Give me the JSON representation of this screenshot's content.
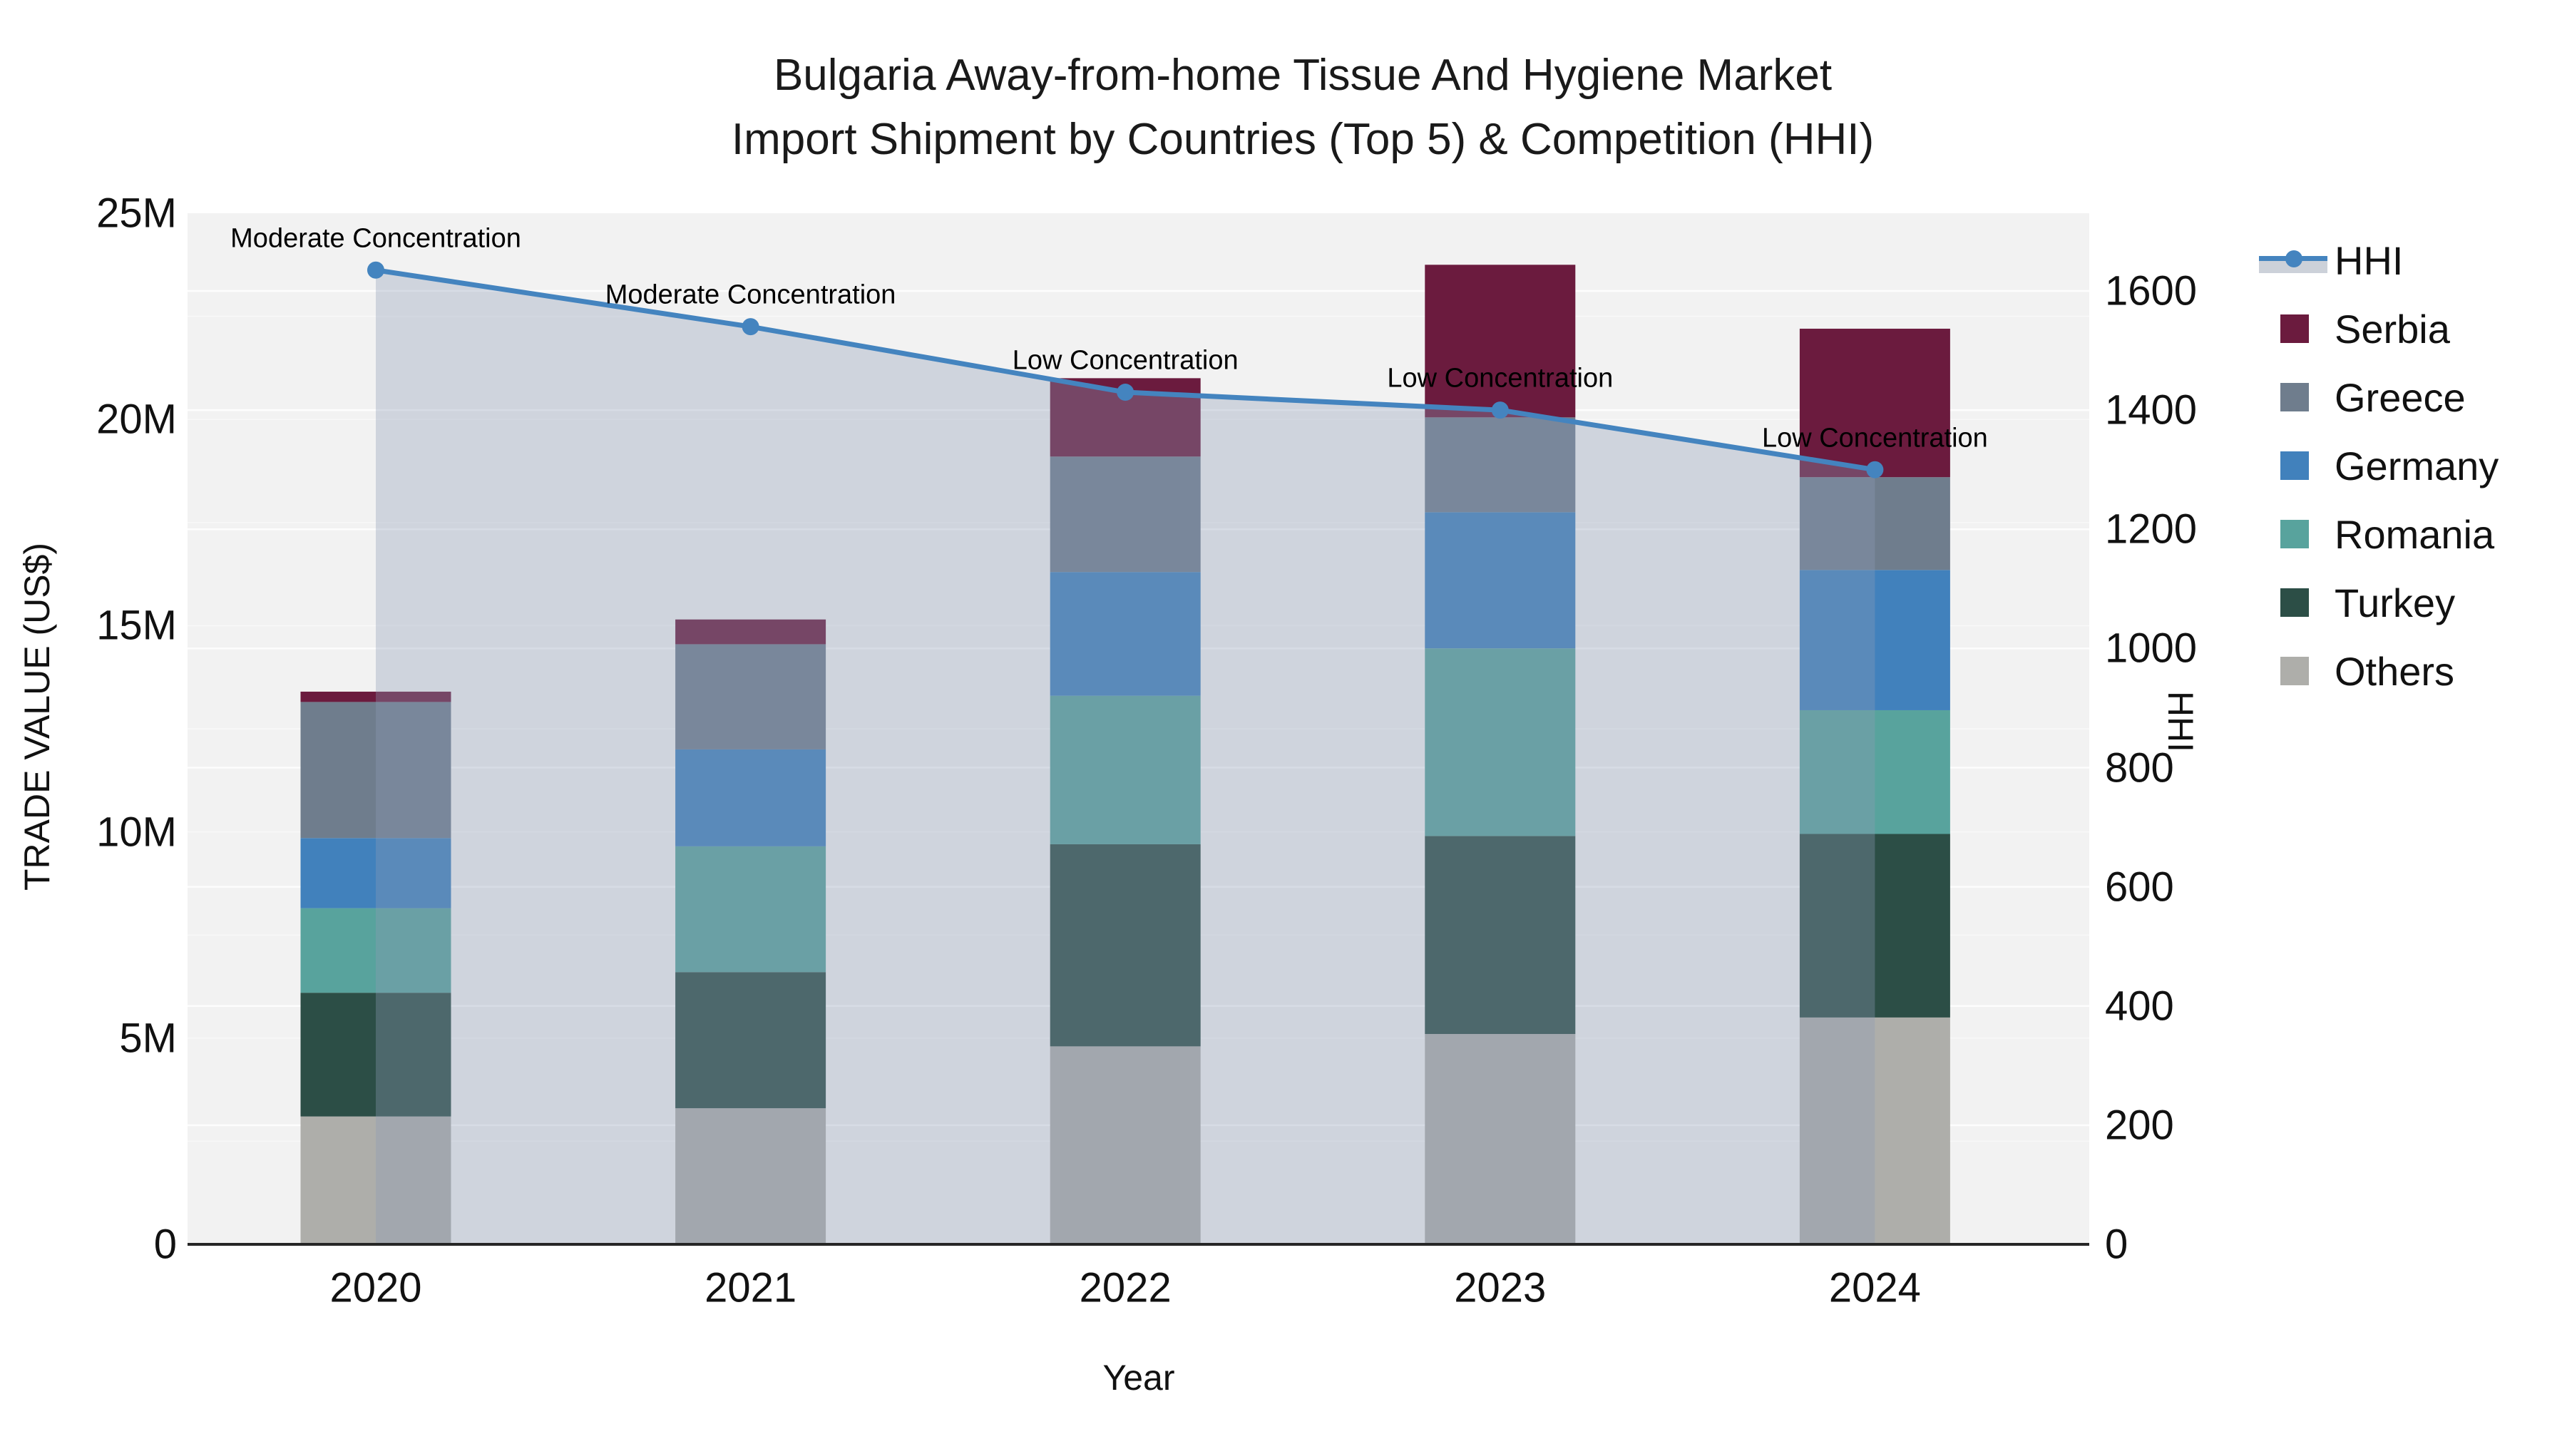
{
  "title": {
    "line1": "Bulgaria Away-from-home Tissue And Hygiene Market",
    "line2": "Import Shipment by Countries (Top 5) & Competition (HHI)"
  },
  "chart_data": {
    "type": "combo: stacked-bar + line-with-area",
    "categories": [
      "2020",
      "2021",
      "2022",
      "2023",
      "2024"
    ],
    "bar_unit": "US$ millions",
    "series": [
      {
        "name": "Others",
        "color": "#aeaeaa",
        "values": [
          3.1,
          3.3,
          4.8,
          5.1,
          5.5
        ]
      },
      {
        "name": "Turkey",
        "color": "#2c4e46",
        "values": [
          3.0,
          3.3,
          4.9,
          4.8,
          4.45
        ]
      },
      {
        "name": "Romania",
        "color": "#58a39d",
        "values": [
          2.05,
          3.05,
          3.6,
          4.55,
          3.0
        ]
      },
      {
        "name": "Germany",
        "color": "#4181bc",
        "values": [
          1.7,
          2.35,
          3.0,
          3.3,
          3.4
        ]
      },
      {
        "name": "Greece",
        "color": "#6f7d8d",
        "values": [
          3.3,
          2.55,
          2.8,
          2.3,
          2.25
        ]
      },
      {
        "name": "Serbia",
        "color": "#6b1b3e",
        "values": [
          0.25,
          0.6,
          1.9,
          3.7,
          3.6
        ]
      }
    ],
    "bar_totals": [
      13.4,
      15.15,
      21.0,
      23.75,
      22.2
    ],
    "line_series": {
      "name": "HHI",
      "color": "#4484bf",
      "marker_color": "#4484bf",
      "area_fill": "rgba(140,155,182,0.34)",
      "values": [
        1635,
        1540,
        1430,
        1400,
        1300
      ]
    },
    "annotations": [
      {
        "category": "2020",
        "text": "Moderate Concentration"
      },
      {
        "category": "2021",
        "text": "Moderate Concentration"
      },
      {
        "category": "2022",
        "text": "Low Concentration"
      },
      {
        "category": "2023",
        "text": "Low Concentration"
      },
      {
        "category": "2024",
        "text": "Low Concentration"
      }
    ],
    "xlabel": "Year",
    "ylabel_left": "TRADE VALUE (US$)",
    "ylabel_right": "HHI",
    "ylim_left": [
      0,
      25
    ],
    "left_ticks": [
      {
        "value": 0,
        "label": "0"
      },
      {
        "value": 5,
        "label": "5M"
      },
      {
        "value": 10,
        "label": "10M"
      },
      {
        "value": 15,
        "label": "15M"
      },
      {
        "value": 20,
        "label": "20M"
      },
      {
        "value": 25,
        "label": "25M"
      }
    ],
    "right_ticks": [
      {
        "value": 0,
        "label": "0"
      },
      {
        "value": 200,
        "label": "200"
      },
      {
        "value": 400,
        "label": "400"
      },
      {
        "value": 600,
        "label": "600"
      },
      {
        "value": 800,
        "label": "800"
      },
      {
        "value": 1000,
        "label": "1000"
      },
      {
        "value": 1200,
        "label": "1200"
      },
      {
        "value": 1400,
        "label": "1400"
      },
      {
        "value": 1600,
        "label": "1600"
      }
    ],
    "plot_background": "#f2f2f2",
    "gridline_color": "#ffffff",
    "legend_position": "right"
  },
  "legend": {
    "hhi_band_color": "#ccd1d9",
    "items": [
      "HHI",
      "Serbia",
      "Greece",
      "Germany",
      "Romania",
      "Turkey",
      "Others"
    ]
  }
}
